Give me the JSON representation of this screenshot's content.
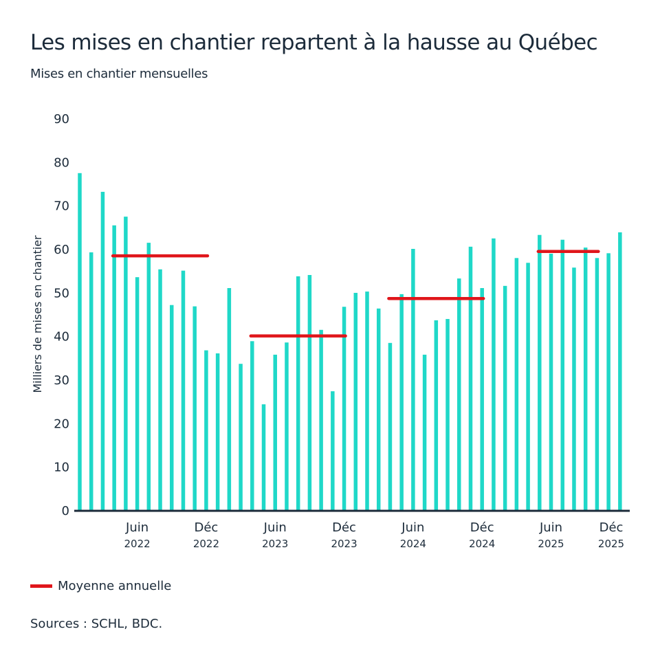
{
  "header": {
    "title": "Les mises en chantier repartent à la hausse au Québec",
    "subtitle": "Mises en chantier mensuelles"
  },
  "legend": {
    "label": "Moyenne annuelle"
  },
  "footer": {
    "source": "Sources : SCHL, BDC."
  },
  "colors": {
    "bar": "#1fd8c8",
    "average": "#e0161b",
    "text": "#1c2b3a",
    "axis": "#1c2b3a"
  },
  "chart_data": {
    "type": "bar",
    "title": "Les mises en chantier repartent à la hausse au Québec",
    "subtitle": "Mises en chantier mensuelles",
    "xlabel": "",
    "ylabel": "Milliers de mises en chantier",
    "ylim": [
      0,
      90
    ],
    "yticks": [
      0,
      10,
      20,
      30,
      40,
      50,
      60,
      70,
      80,
      90
    ],
    "grid": false,
    "legend_position": "bottom-left",
    "categories": [
      "2022-01",
      "2022-02",
      "2022-03",
      "2022-04",
      "2022-05",
      "2022-06",
      "2022-07",
      "2022-08",
      "2022-09",
      "2022-10",
      "2022-11",
      "2022-12",
      "2023-01",
      "2023-02",
      "2023-03",
      "2023-04",
      "2023-05",
      "2023-06",
      "2023-07",
      "2023-08",
      "2023-09",
      "2023-10",
      "2023-11",
      "2023-12",
      "2024-01",
      "2024-02",
      "2024-03",
      "2024-04",
      "2024-05",
      "2024-06",
      "2024-07",
      "2024-08",
      "2024-09",
      "2024-10",
      "2024-11",
      "2024-12",
      "2025-01",
      "2025-02",
      "2025-03",
      "2025-04",
      "2025-05",
      "2025-06",
      "2025-07",
      "2025-08",
      "2025-09",
      "2025-10",
      "2025-11",
      "2025-12"
    ],
    "series": [
      {
        "name": "Mises en chantier mensuelles",
        "values": [
          77.4,
          59.2,
          73.1,
          65.4,
          67.4,
          53.5,
          61.4,
          55.3,
          47.1,
          55.0,
          46.8,
          36.7,
          36.0,
          51.0,
          33.6,
          38.8,
          24.3,
          35.7,
          38.5,
          53.7,
          54.0,
          41.4,
          27.3,
          46.7,
          49.9,
          50.2,
          46.3,
          38.4,
          49.6,
          60.0,
          35.7,
          43.6,
          43.9,
          53.2,
          60.5,
          51.0,
          62.4,
          51.5,
          57.9,
          56.8,
          63.2,
          58.9,
          62.1,
          55.7,
          60.3,
          57.9,
          59.0,
          63.8
        ]
      }
    ],
    "annual_averages": [
      {
        "name": "Moyenne annuelle",
        "year": "2022",
        "value": 58.4,
        "from": "2022-04",
        "to": "2022-12"
      },
      {
        "name": "Moyenne annuelle",
        "year": "2023",
        "value": 40.0,
        "from": "2023-04",
        "to": "2023-12"
      },
      {
        "name": "Moyenne annuelle",
        "year": "2024",
        "value": 48.6,
        "from": "2024-04",
        "to": "2024-12"
      },
      {
        "name": "Moyenne annuelle",
        "year": "2025",
        "value": 59.4,
        "from": "2025-05",
        "to": "2025-10"
      }
    ],
    "xticks": [
      {
        "month": "Juin",
        "year": "2022",
        "at": "2022-06"
      },
      {
        "month": "Déc",
        "year": "2022",
        "at": "2022-12"
      },
      {
        "month": "Juin",
        "year": "2023",
        "at": "2023-06"
      },
      {
        "month": "Déc",
        "year": "2023",
        "at": "2023-12"
      },
      {
        "month": "Juin",
        "year": "2024",
        "at": "2024-06"
      },
      {
        "month": "Déc",
        "year": "2024",
        "at": "2024-12"
      },
      {
        "month": "Juin",
        "year": "2025",
        "at": "2025-06"
      },
      {
        "month": "Déc",
        "year": "2025",
        "at": "2025-12"
      }
    ]
  }
}
